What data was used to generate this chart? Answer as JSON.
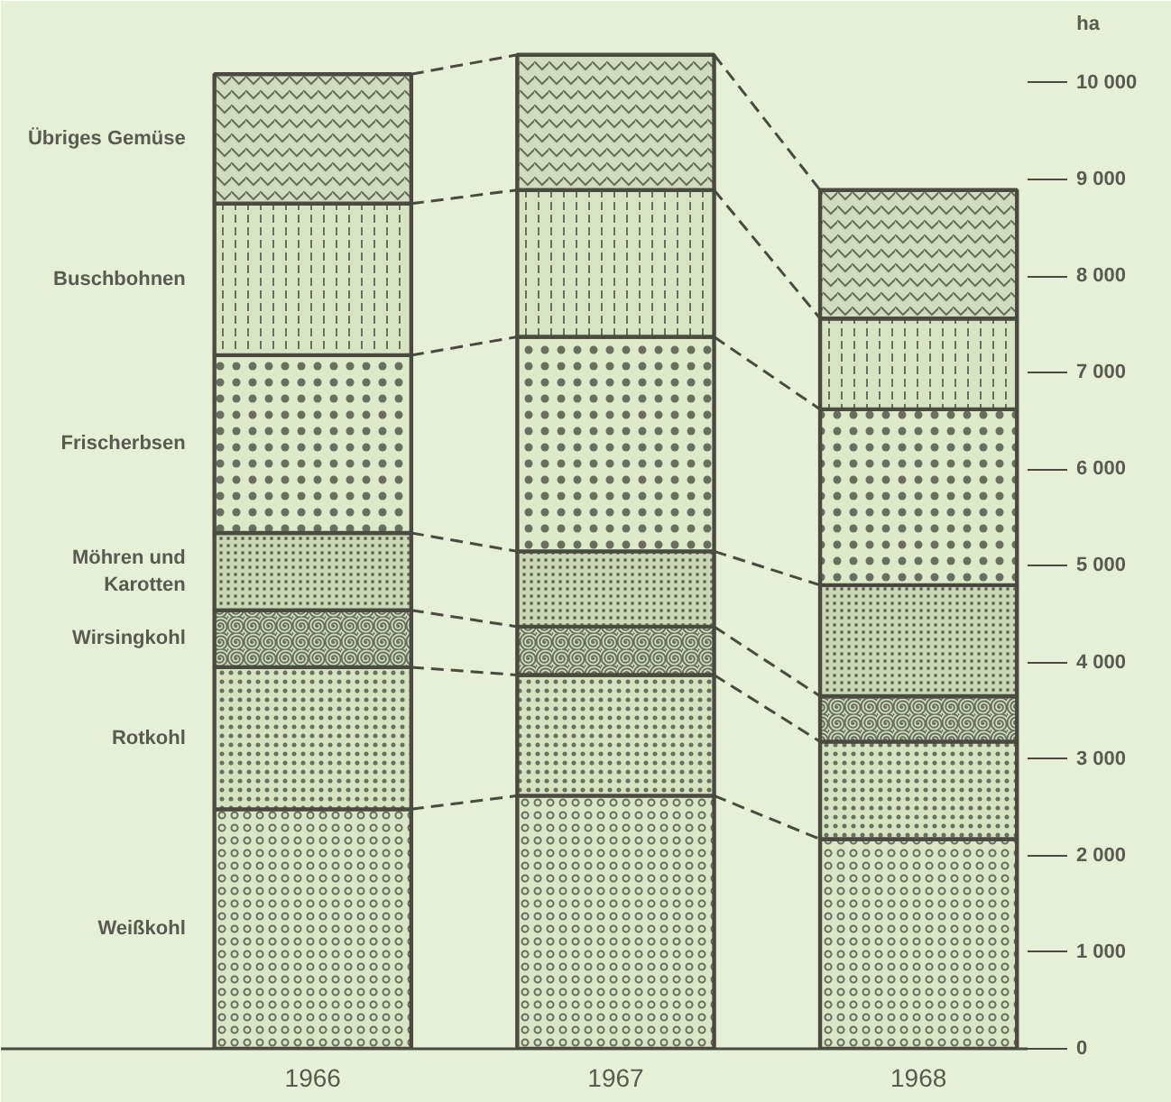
{
  "chart_data": {
    "type": "bar",
    "stacked": true,
    "categories": [
      "1966",
      "1967",
      "1968"
    ],
    "ylabel": "ha",
    "ylim": [
      0,
      10400
    ],
    "yticks": [
      0,
      {
        "value": 1000,
        "label": "1 000"
      },
      {
        "value": 2000,
        "label": "2 000"
      },
      {
        "value": 3000,
        "label": "3 000"
      },
      {
        "value": 4000,
        "label": "4 000"
      },
      {
        "value": 5000,
        "label": "5 000"
      },
      {
        "value": 6000,
        "label": "6 000"
      },
      {
        "value": 7000,
        "label": "7 000"
      },
      {
        "value": 8000,
        "label": "8 000"
      },
      {
        "value": 9000,
        "label": "9 000"
      },
      {
        "value": 10000,
        "label": "10 000"
      }
    ],
    "series": [
      {
        "name": "Weißkohl",
        "color": "#d9e7c6",
        "values": [
          2480,
          2620,
          2170
        ]
      },
      {
        "name": "Rotkohl",
        "color": "#d4e3c0",
        "values": [
          1470,
          1250,
          1010
        ]
      },
      {
        "name": "Wirsingkohl",
        "color": "#d0dfbc",
        "values": [
          590,
          500,
          470
        ]
      },
      {
        "name": "Möhren und\nKarotten",
        "color": "#c9d8b5",
        "values": [
          800,
          780,
          1150
        ]
      },
      {
        "name": "Frischerbsen",
        "color": "#dceac9",
        "values": [
          1840,
          2220,
          1820
        ]
      },
      {
        "name": "Buschbohnen",
        "color": "#d6e4c3",
        "values": [
          1570,
          1520,
          940
        ]
      },
      {
        "name": "Übriges Gemüse",
        "color": "#cfdcbd",
        "values": [
          1340,
          1400,
          1330
        ]
      }
    ]
  }
}
